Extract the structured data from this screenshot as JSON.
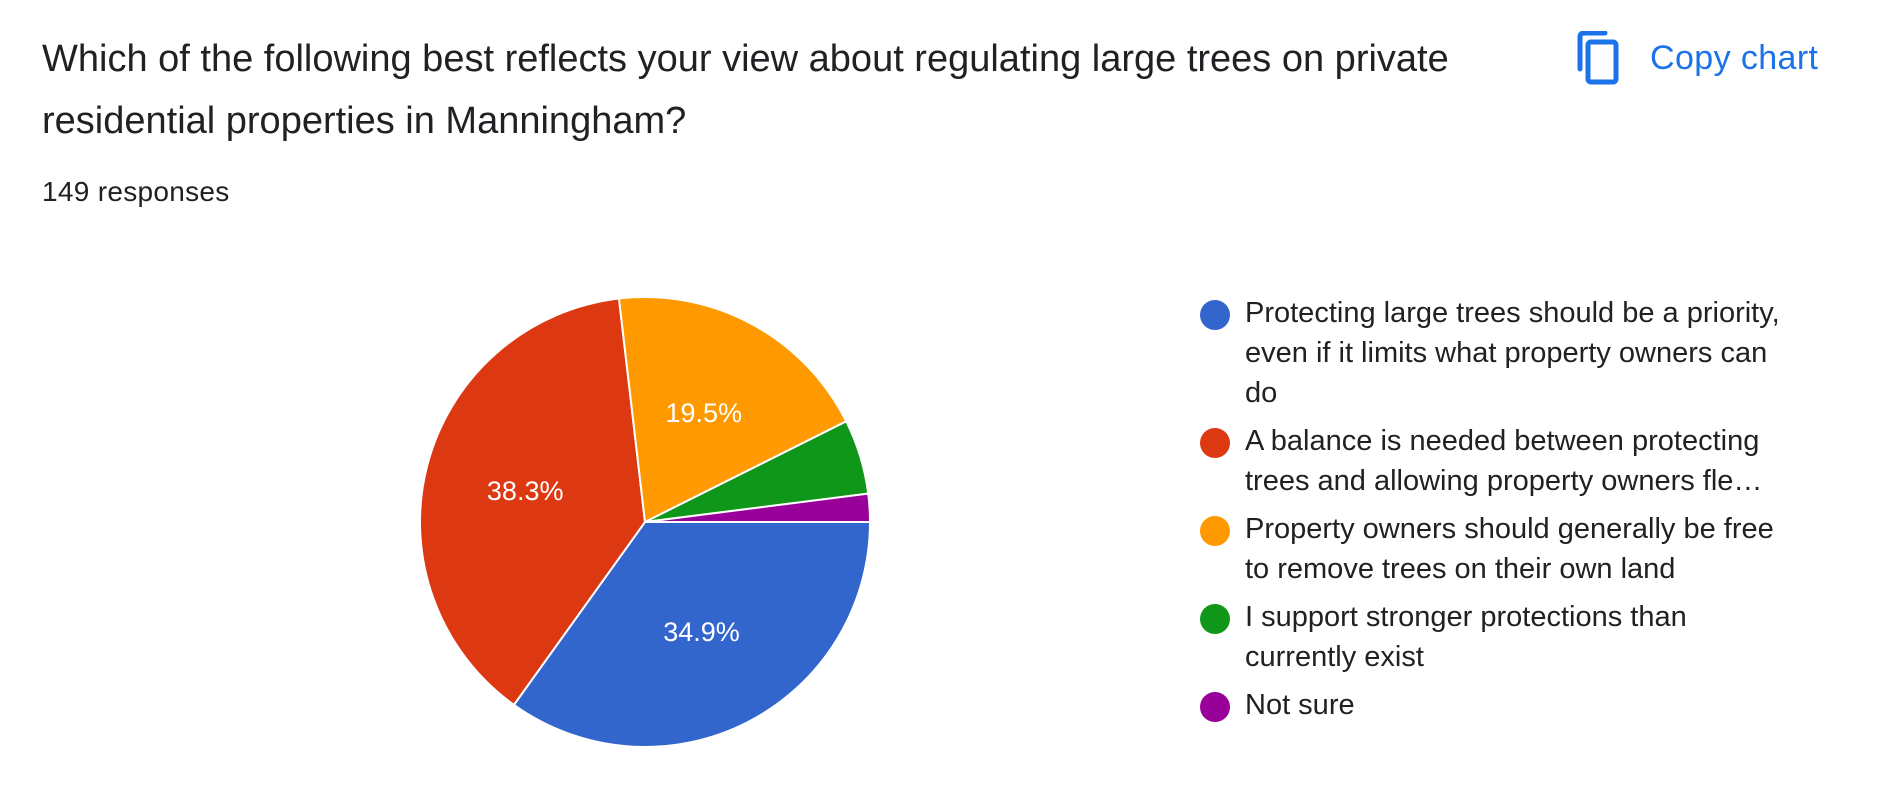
{
  "question": {
    "title": "Which of the following best reflects your view about regulating large trees on private residential properties in Manningham?",
    "response_count": "149 responses"
  },
  "copy_chart": {
    "label": "Copy chart",
    "icon": "copy-icon",
    "color": "#1a73e8"
  },
  "chart_data": {
    "type": "pie",
    "total_responses": 149,
    "slices": [
      {
        "label": "Protecting large trees should be a priority, even if it limits what property owners can do",
        "value": 52,
        "percent_label": "34.9%",
        "color": "#3366cc"
      },
      {
        "label": "A balance is needed between protecting trees and allowing property owners fle…",
        "value": 57,
        "percent_label": "38.3%",
        "color": "#dc3912"
      },
      {
        "label": "Property owners should generally be free to remove trees on their own land",
        "value": 29,
        "percent_label": "19.5%",
        "color": "#ff9900"
      },
      {
        "label": "I support stronger protections than currently exist",
        "value": 8,
        "percent_label": "",
        "color": "#109618"
      },
      {
        "label": "Not sure",
        "value": 3,
        "percent_label": "",
        "color": "#990099"
      }
    ],
    "legend_position": "right"
  }
}
